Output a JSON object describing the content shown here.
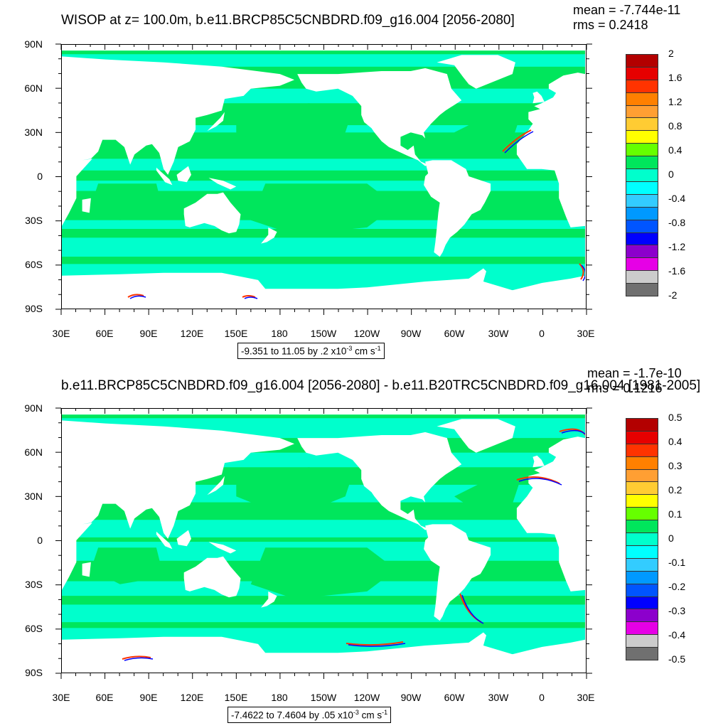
{
  "panels": [
    {
      "title": "WISOP at z= 100.0m, b.e11.BRCP85C5CNBDRD.f09_g16.004 [2056-2080]",
      "mean": "mean = -7.744e-11",
      "rms": "rms = 0.2418",
      "range_text": "-9.351 to 11.05 by .2 x10",
      "range_exp": "-3",
      "range_units": " cm s",
      "range_units_exp": "-1",
      "colorbar_labels": [
        "2",
        "1.6",
        "1.2",
        "0.8",
        "0.4",
        "0",
        "-0.4",
        "-0.8",
        "-1.2",
        "-1.6",
        "-2"
      ]
    },
    {
      "title": "b.e11.BRCP85C5CNBDRD.f09_g16.004 [2056-2080] - b.e11.B20TRC5CNBDRD.f09_g16.004 [1981-2005]",
      "mean": "mean = -1.7e-10",
      "rms": "rms = 0.1216",
      "range_text": "-7.4622 to 7.4604 by .05 x10",
      "range_exp": "-3",
      "range_units": " cm s",
      "range_units_exp": "-1",
      "colorbar_labels": [
        "0.5",
        "0.4",
        "0.3",
        "0.2",
        "0.1",
        "0",
        "-0.1",
        "-0.2",
        "-0.3",
        "-0.4",
        "-0.5"
      ]
    }
  ],
  "axes": {
    "lat_labels": [
      "90N",
      "60N",
      "30N",
      "0",
      "30S",
      "60S",
      "90S"
    ],
    "lon_labels": [
      "30E",
      "60E",
      "90E",
      "120E",
      "150E",
      "180",
      "150W",
      "120W",
      "90W",
      "60W",
      "30W",
      "0",
      "30E"
    ]
  },
  "colorbar_colors": [
    "#b30000",
    "#e60000",
    "#ff3300",
    "#ff8000",
    "#ff9f33",
    "#ffcc33",
    "#ffff00",
    "#66ff00",
    "#00e65c",
    "#00ffcc",
    "#00ffff",
    "#33ccff",
    "#0099ff",
    "#0055ff",
    "#0000ff",
    "#8c00cc",
    "#e600e6",
    "#cccccc",
    "#707070"
  ],
  "palette": {
    "ocean_green": "#00e65c",
    "ocean_cyan": "#00ffcc",
    "land": "#ffffff"
  }
}
